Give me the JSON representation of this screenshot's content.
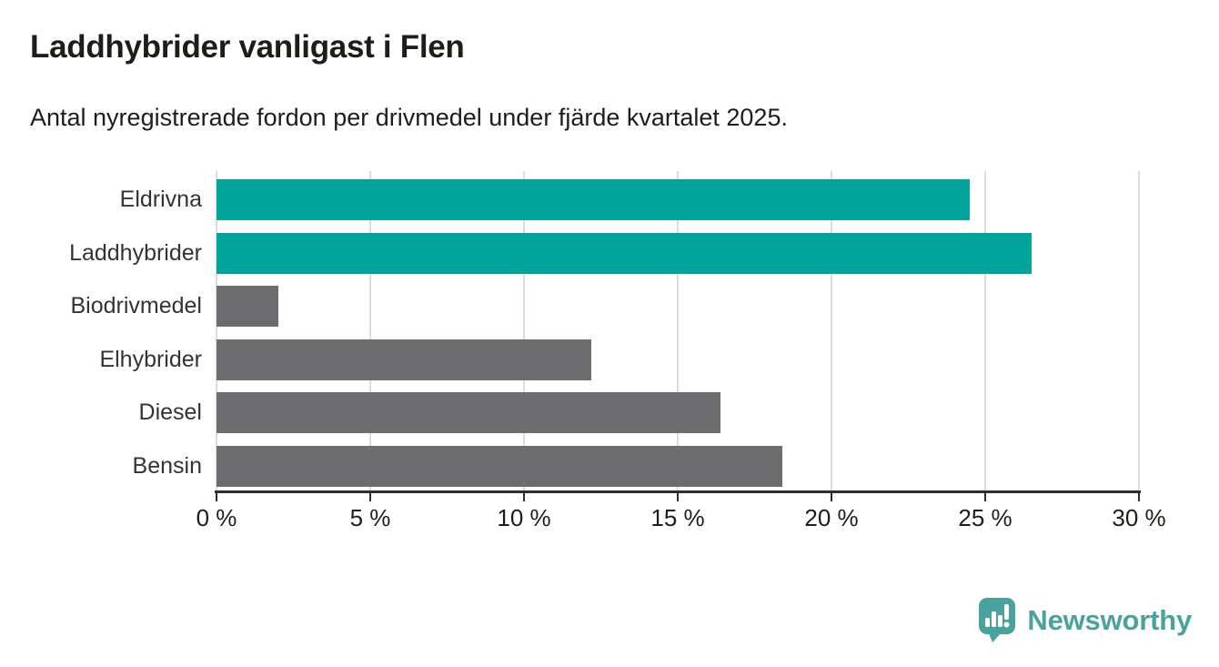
{
  "header": {
    "title": "Laddhybrider vanligast i Flen",
    "subtitle": "Antal nyregistrerade fordon per drivmedel under fjärde kvartalet 2025."
  },
  "chart_data": {
    "type": "bar",
    "orientation": "horizontal",
    "title": "Laddhybrider vanligast i Flen",
    "subtitle": "Antal nyregistrerade fordon per drivmedel under fjärde kvartalet 2025.",
    "categories": [
      "Eldrivna",
      "Laddhybrider",
      "Biodrivmedel",
      "Elhybrider",
      "Diesel",
      "Bensin"
    ],
    "values": [
      24.5,
      26.5,
      2.0,
      12.2,
      16.4,
      18.4
    ],
    "unit": "%",
    "xlim": [
      0,
      30
    ],
    "x_ticks": [
      0,
      5,
      10,
      15,
      20,
      25,
      30
    ],
    "x_tick_labels": [
      "0 %",
      "5 %",
      "10 %",
      "15 %",
      "20 %",
      "25 %",
      "30 %"
    ],
    "grid": true,
    "legend": "none",
    "highlight_color": "#00a49b",
    "default_color": "#6d6d70",
    "bar_colors": [
      "#00a49b",
      "#00a49b",
      "#6d6d70",
      "#6d6d70",
      "#6d6d70",
      "#6d6d70"
    ]
  },
  "branding": {
    "logo_text": "Newsworthy",
    "logo_color": "#4aa29c"
  }
}
